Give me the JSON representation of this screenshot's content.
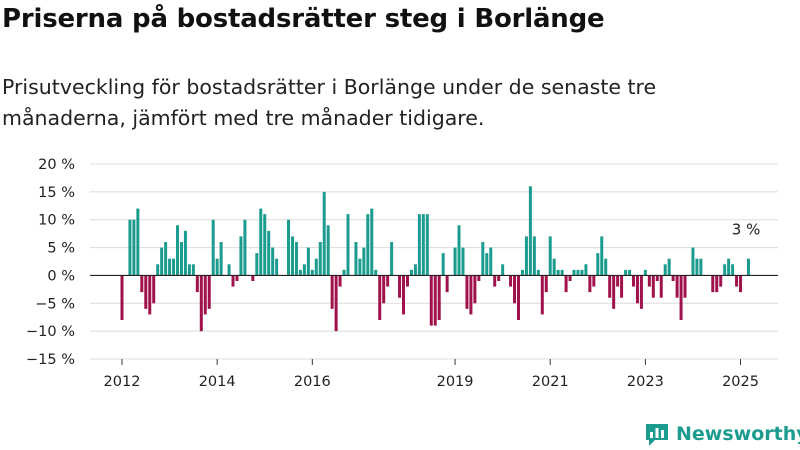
{
  "title": "Priserna på bostadsrätter steg i Borlänge",
  "subtitle": "Prisutveckling för bostadsrätter i Borlänge under de senaste tre månaderna, jämfört med tre månader tidigare.",
  "brand": "Newsworthy",
  "colors": {
    "positive": "#1b9c8f",
    "negative": "#a0124b",
    "brand": "#1b9c8f"
  },
  "chart_data": {
    "type": "bar",
    "ylabel": "",
    "xlabel": "",
    "ylim": [
      -15,
      20
    ],
    "y_ticks": [
      "20 %",
      "15 %",
      "10 %",
      "5 %",
      "0 %",
      "−5 %",
      "−10 %",
      "−15 %"
    ],
    "y_tick_values": [
      20,
      15,
      10,
      5,
      0,
      -5,
      -10,
      -15
    ],
    "x_ticks": [
      "2012",
      "2014",
      "2016",
      "2019",
      "2021",
      "2023",
      "2025"
    ],
    "x_tick_years": [
      2012,
      2014,
      2016,
      2019,
      2021,
      2023,
      2025
    ],
    "grid": true,
    "annotation": {
      "text": "3 %",
      "date": "2025-06",
      "value": 3
    },
    "start_month": "2012-01",
    "values": [
      -8,
      0,
      10,
      10,
      12,
      -3,
      -6,
      -7,
      -5,
      2,
      5,
      6,
      3,
      3,
      9,
      6,
      8,
      2,
      2,
      -3,
      -10,
      -7,
      -6,
      10,
      3,
      6,
      0,
      2,
      -2,
      -1,
      7,
      10,
      0,
      -1,
      4,
      12,
      11,
      8,
      5,
      3,
      0,
      0,
      10,
      7,
      6,
      1,
      2,
      5,
      1,
      3,
      6,
      15,
      9,
      -6,
      -10,
      -2,
      1,
      11,
      0,
      6,
      3,
      5,
      11,
      12,
      1,
      -8,
      -5,
      -2,
      6,
      0,
      -4,
      -7,
      -2,
      1,
      2,
      11,
      11,
      11,
      -9,
      -9,
      -8,
      4,
      -3,
      0,
      5,
      9,
      5,
      -6,
      -7,
      -5,
      -1,
      6,
      4,
      5,
      -2,
      -1,
      2,
      0,
      -2,
      -5,
      -8,
      1,
      7,
      16,
      7,
      1,
      -7,
      -3,
      7,
      3,
      1,
      1,
      -3,
      -1,
      1,
      1,
      1,
      2,
      -3,
      -2,
      4,
      7,
      3,
      -4,
      -6,
      -2,
      -4,
      1,
      1,
      -2,
      -5,
      -6,
      1,
      -2,
      -4,
      -1,
      -4,
      2,
      3,
      -1,
      -4,
      -8,
      -4,
      0,
      5,
      3,
      3,
      0,
      0,
      -3,
      -3,
      -2,
      2,
      3,
      2,
      -2,
      -3,
      0,
      3
    ]
  }
}
